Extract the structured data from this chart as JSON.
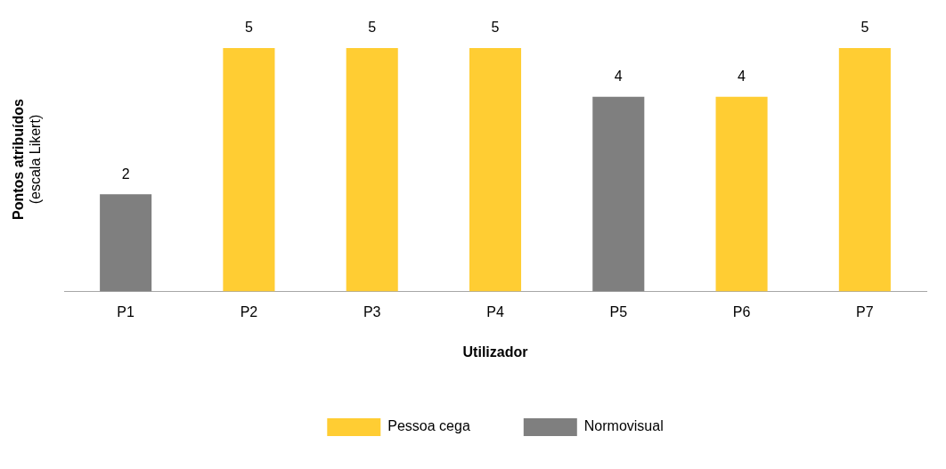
{
  "chart_data": {
    "type": "bar",
    "xlabel": "Utilizador",
    "ylabel": "Pontos atribuídos\n(escala Likert)",
    "categories": [
      "P1",
      "P2",
      "P3",
      "P4",
      "P5",
      "P6",
      "P7"
    ],
    "series": [
      {
        "name": "Pessoa cega",
        "color": "#ffcd33",
        "values": [
          null,
          5,
          5,
          5,
          null,
          4,
          5
        ]
      },
      {
        "name": "Normovisual",
        "color": "#7f7f7f",
        "values": [
          2,
          null,
          null,
          null,
          4,
          null,
          null
        ]
      }
    ],
    "ylim": [
      0,
      5
    ],
    "tick_labels": "x",
    "data_labels": true,
    "legend": "bottom"
  }
}
